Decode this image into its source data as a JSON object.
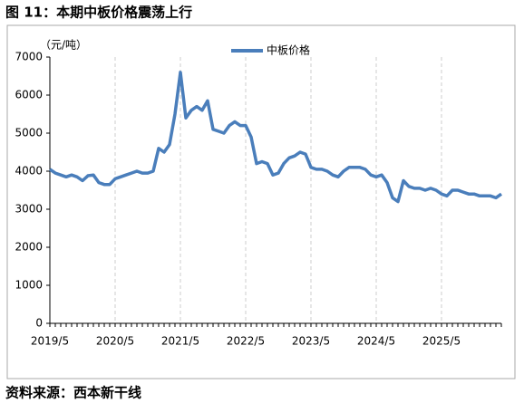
{
  "title": "图 11：本期中板价格震荡上行",
  "source": "资料来源：西本新干线",
  "chart_data": {
    "type": "line",
    "y_label": "（元/吨）",
    "categories": [
      "2019/5",
      null,
      null,
      null,
      null,
      null,
      null,
      null,
      null,
      null,
      null,
      null,
      "2020/5",
      null,
      null,
      null,
      null,
      null,
      null,
      null,
      null,
      null,
      null,
      null,
      "2021/5",
      null,
      null,
      null,
      null,
      null,
      null,
      null,
      null,
      null,
      null,
      null,
      "2022/5",
      null,
      null,
      null,
      null,
      null,
      null,
      null,
      null,
      null,
      null,
      null,
      "2023/5",
      null,
      null,
      null,
      null,
      null,
      null,
      null,
      null,
      null,
      null,
      null,
      "2024/5",
      null,
      null,
      null,
      null,
      null,
      null,
      null,
      null,
      null,
      null,
      null,
      "2025/5",
      null,
      null,
      null,
      null,
      null,
      null,
      null,
      null,
      null,
      null,
      null
    ],
    "series": [
      {
        "name": "中板价格",
        "color": "#4a7ebb",
        "values": [
          4050,
          3950,
          3900,
          3850,
          3900,
          3850,
          3750,
          3880,
          3900,
          3700,
          3650,
          3650,
          3800,
          3850,
          3900,
          3950,
          4000,
          3950,
          3950,
          4000,
          4600,
          4500,
          4700,
          5500,
          6600,
          5400,
          5600,
          5700,
          5600,
          5850,
          5100,
          5050,
          5000,
          5200,
          5300,
          5200,
          5200,
          4900,
          4200,
          4250,
          4200,
          3900,
          3950,
          4200,
          4350,
          4400,
          4500,
          4450,
          4100,
          4050,
          4050,
          4000,
          3900,
          3850,
          4000,
          4100,
          4100,
          4100,
          4050,
          3900,
          3850,
          3900,
          3700,
          3300,
          3200,
          3750,
          3600,
          3550,
          3550,
          3500,
          3550,
          3500,
          3400,
          3350,
          3500,
          3500,
          3450,
          3400,
          3400,
          3350,
          3350,
          3350,
          3300,
          3400
        ]
      }
    ],
    "ylim": [
      0,
      7000
    ],
    "yticks": [
      0,
      1000,
      2000,
      3000,
      4000,
      5000,
      6000,
      7000
    ],
    "grid": true
  }
}
